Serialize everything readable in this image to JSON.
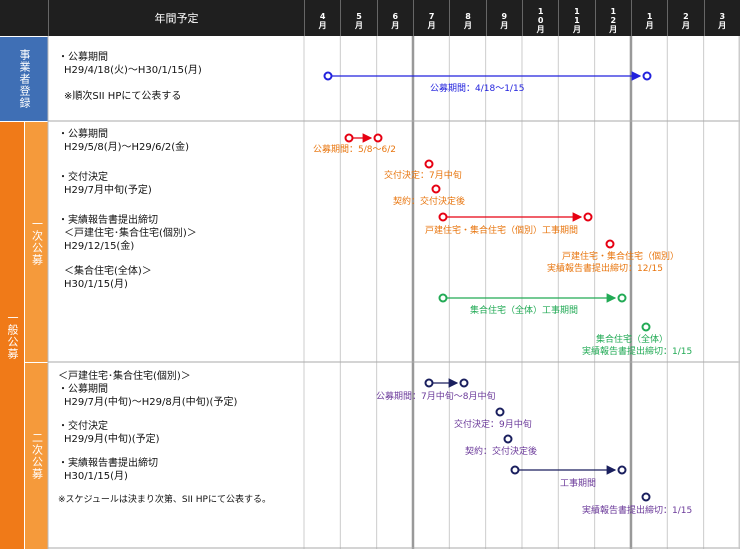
{
  "header": {
    "title": "年間予定",
    "months": [
      "4月",
      "5月",
      "6月",
      "7月",
      "8月",
      "9月",
      "10月",
      "11月",
      "12月",
      "1月",
      "2月",
      "3月"
    ]
  },
  "sections": {
    "jigyosha": "事業者登録",
    "ippan": "一般公募",
    "first": "一次公募",
    "second": "二次公募"
  },
  "jigyosha_desc": [
    "・公募期間",
    "H29/4/18(火)～H30/1/15(月)",
    "※順次SII HPにて公表する"
  ],
  "first_desc": [
    "・公募期間",
    "H29/5/8(月)～H29/6/2(金)",
    "・交付決定",
    "H29/7月中旬(予定)",
    "・実績報告書提出締切",
    "＜戸建住宅･集合住宅(個別)＞",
    "H29/12/15(金)",
    "＜集合住宅(全体)＞",
    "H30/1/15(月)"
  ],
  "second_desc": [
    "＜戸建住宅･集合住宅(個別)＞",
    "・公募期間",
    "H29/7月(中旬)～H29/8月(中旬)(予定)",
    "・交付決定",
    "H29/9月(中旬)(予定)",
    "・実績報告書提出締切",
    "H30/1/15(月)",
    "※スケジュールは決まり次第、SII HPにて公表する。"
  ],
  "timeline_labels": {
    "jigyosha_period": "公募期間：4/18～1/15",
    "first_period": "公募期間：5/8～6/2",
    "first_kofu": "交付決定：7月中旬",
    "first_keiyaku": "契約：交付決定後",
    "first_koji_kobetsu": "戸建住宅・集合住宅（個別）工事期間",
    "first_kobetsu_deadline_1": "戸建住宅・集合住宅（個別）",
    "first_kobetsu_deadline_2": "実績報告書提出締切：12/15",
    "first_koji_zentai": "集合住宅（全体）工事期間",
    "first_zentai_deadline_1": "集合住宅（全体）",
    "first_zentai_deadline_2": "実績報告書提出締切：1/15",
    "second_period": "公募期間：7月中旬～8月中旬",
    "second_kofu": "交付決定：9月中旬",
    "second_keiyaku": "契約：交付決定後",
    "second_koji": "工事期間",
    "second_deadline": "実績報告書提出締切：1/15"
  },
  "colors": {
    "header_bg": "#1f1f1f",
    "blue_section": "#3f6fb5",
    "orange_dark": "#f07a18",
    "orange_light": "#f59a3b",
    "blue_line": "#2222dd",
    "red": "#e60012",
    "green": "#22aa55",
    "navy": "#1a1f5e",
    "orange_text": "#e8760f",
    "purple_text": "#6b3a9a"
  }
}
